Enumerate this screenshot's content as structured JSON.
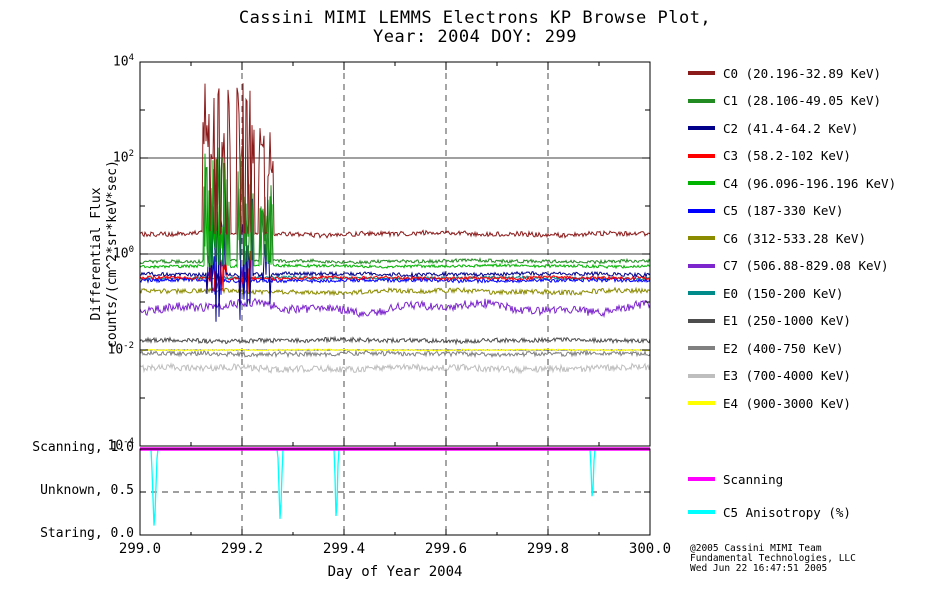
{
  "title": {
    "line1": "Cassini MIMI LEMMS Electrons KP Browse Plot,",
    "line2": "Year: 2004 DOY: 299"
  },
  "axes": {
    "ylabel_line1": "Differential Flux",
    "ylabel_line2": "counts/(cm^2*sr*keV*sec)",
    "xlabel": "Day of Year 2004",
    "x_ticks": [
      "299.0",
      "299.2",
      "299.4",
      "299.6",
      "299.8",
      "300.0"
    ],
    "y_exponents": [
      4,
      2,
      0,
      -2,
      -4
    ]
  },
  "mode_labels": [
    {
      "label": "Scanning, 1.0",
      "value": 1.0
    },
    {
      "label": "Unknown, 0.5",
      "value": 0.5
    },
    {
      "label": "Staring, 0.0",
      "value": 0.0
    }
  ],
  "bottom_legend": [
    {
      "label": "Scanning",
      "color": "#FF00FF"
    },
    {
      "label": "C5 Anisotropy (%)",
      "color": "#00FFFF"
    }
  ],
  "credit": {
    "line1": "@2005 Cassini MIMI Team",
    "line2": "Fundamental Technologies, LLC",
    "line3": "Wed Jun 22 16:47:51 2005"
  },
  "chart_data": {
    "type": "line",
    "title": "Cassini MIMI LEMMS Electrons KP Browse Plot, Year: 2004 DOY: 299",
    "xlabel": "Day of Year 2004",
    "ylabel": "Differential Flux counts/(cm^2*sr*keV*sec)",
    "x_range": [
      299.0,
      300.0
    ],
    "y_scale": "log10",
    "y_range_log10": [
      -4,
      4
    ],
    "grid": {
      "x_dashed_ticks": [
        299.2,
        299.4,
        299.6,
        299.8
      ],
      "y_solid_exponents": [
        2,
        0,
        -2
      ]
    },
    "draw_order": [
      "E3",
      "E2",
      "E1",
      "E4",
      "E0",
      "C7",
      "C6",
      "C5",
      "C3",
      "C2",
      "C4",
      "C1",
      "C0"
    ],
    "series": [
      {
        "id": "C0",
        "label": "C0 (20.196-32.89 KeV)",
        "color": "#8B1A1A",
        "base_log10": 0.42,
        "noise_log10": 0.05,
        "wander": 0.02,
        "bursts": [
          {
            "x0": 299.122,
            "x1": 299.178,
            "peak": 3.55,
            "depth": 1.9
          },
          {
            "x0": 299.19,
            "x1": 299.225,
            "peak": 3.6,
            "depth": 1.9
          },
          {
            "x0": 299.232,
            "x1": 299.262,
            "peak": 2.75,
            "depth": 1.2
          }
        ]
      },
      {
        "id": "C1",
        "label": "C1 (28.106-49.05 KeV)",
        "color": "#228B22",
        "base_log10": -0.15,
        "noise_log10": 0.035,
        "wander": 0.015,
        "bursts": [
          {
            "x0": 299.125,
            "x1": 299.175,
            "peak": 2.35,
            "depth": 2.2
          },
          {
            "x0": 299.192,
            "x1": 299.222,
            "peak": 2.3,
            "depth": 2.2
          },
          {
            "x0": 299.235,
            "x1": 299.26,
            "peak": 1.5,
            "depth": 1.6
          }
        ]
      },
      {
        "id": "C2",
        "label": "C2 (41.4-64.2 KeV)",
        "color": "#00008B",
        "base_log10": -0.42,
        "noise_log10": 0.04,
        "wander": 0.01,
        "bursts": [
          {
            "x0": 299.13,
            "x1": 299.17,
            "peak": 1.15,
            "depth": 2.6
          },
          {
            "x0": 299.195,
            "x1": 299.22,
            "peak": 1.2,
            "depth": 2.6
          },
          {
            "x0": 299.24,
            "x1": 299.258,
            "peak": 0.5,
            "depth": 1.8
          }
        ]
      },
      {
        "id": "C3",
        "label": "C3 (58.2-102 KeV)",
        "color": "#FF0000",
        "base_log10": -0.5,
        "noise_log10": 0.035,
        "wander": 0.01,
        "bursts": [
          {
            "x0": 299.13,
            "x1": 299.17,
            "peak": 0.1,
            "depth": 1.0
          },
          {
            "x0": 299.196,
            "x1": 299.218,
            "peak": 0.1,
            "depth": 1.0
          }
        ]
      },
      {
        "id": "C4",
        "label": "C4 (96.096-196.196 KeV)",
        "color": "#00B300",
        "base_log10": -0.25,
        "noise_log10": 0.03,
        "wander": 0.01,
        "bursts": [
          {
            "x0": 299.125,
            "x1": 299.175,
            "peak": 2.1,
            "depth": 2.0
          },
          {
            "x0": 299.192,
            "x1": 299.222,
            "peak": 2.05,
            "depth": 2.0
          },
          {
            "x0": 299.235,
            "x1": 299.26,
            "peak": 1.2,
            "depth": 1.4
          }
        ]
      },
      {
        "id": "C5",
        "label": "C5 (187-330 KeV)",
        "color": "#0000FF",
        "base_log10": -0.55,
        "noise_log10": 0.04,
        "wander": 0.01,
        "bursts": [
          {
            "x0": 299.13,
            "x1": 299.168,
            "peak": 0.2,
            "depth": 1.2
          },
          {
            "x0": 299.197,
            "x1": 299.217,
            "peak": 0.15,
            "depth": 1.2
          }
        ]
      },
      {
        "id": "C6",
        "label": "C6 (312-533.28 KeV)",
        "color": "#8B8B00",
        "base_log10": -0.78,
        "noise_log10": 0.05,
        "wander": 0.02,
        "bursts": []
      },
      {
        "id": "C7",
        "label": "C7 (506.88-829.08 KeV)",
        "color": "#7D26CD",
        "base_log10": -1.12,
        "noise_log10": 0.09,
        "wander": 0.07,
        "bursts": []
      },
      {
        "id": "E0",
        "label": "E0 (150-200 KeV)",
        "color": "#008B8B",
        "base_log10": -0.5,
        "noise_log10": 0.03,
        "wander": 0.01,
        "bursts": []
      },
      {
        "id": "E1",
        "label": "E1 (250-1000 KeV)",
        "color": "#4D4D4D",
        "base_log10": -1.8,
        "noise_log10": 0.045,
        "wander": 0.015,
        "bursts": []
      },
      {
        "id": "E2",
        "label": "E2 (400-750 KeV)",
        "color": "#808080",
        "base_log10": -2.08,
        "noise_log10": 0.05,
        "wander": 0.01,
        "bursts": []
      },
      {
        "id": "E3",
        "label": "E3 (700-4000 KeV)",
        "color": "#BEBEBE",
        "base_log10": -2.38,
        "noise_log10": 0.07,
        "wander": 0.02,
        "bursts": []
      },
      {
        "id": "E4",
        "label": "E4 (900-3000 KeV)",
        "color": "#FFFF00",
        "base_log10": -2.0,
        "noise_log10": 0.015,
        "wander": 0.005,
        "bursts": []
      }
    ],
    "bottom_panel": {
      "y_range": [
        0,
        1
      ],
      "y_ticks": [
        0.0,
        0.5,
        1.0
      ],
      "series": [
        {
          "name": "Scanning",
          "color": "#FF00FF",
          "value": 1.0
        },
        {
          "name": "C5 Anisotropy (%)",
          "color": "#00FFFF",
          "baseline": 1.0,
          "dips": [
            {
              "x": 299.028,
              "width": 0.012,
              "min": 0.02
            },
            {
              "x": 299.275,
              "width": 0.01,
              "min": 0.1
            },
            {
              "x": 299.385,
              "width": 0.008,
              "min": 0.06
            },
            {
              "x": 299.887,
              "width": 0.008,
              "min": 0.33
            }
          ]
        }
      ]
    }
  }
}
